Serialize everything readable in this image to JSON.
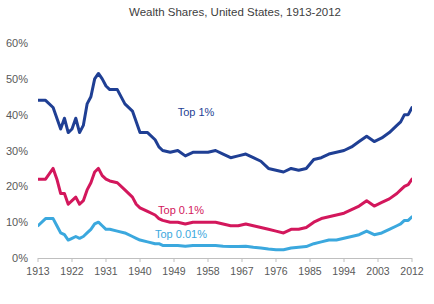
{
  "chart_data": {
    "type": "line",
    "title": "Wealth Shares, United States, 1913-2012",
    "x": [
      1913,
      1915,
      1917,
      1918,
      1919,
      1920,
      1921,
      1922,
      1923,
      1924,
      1925,
      1926,
      1927,
      1928,
      1929,
      1930,
      1931,
      1932,
      1934,
      1936,
      1938,
      1939,
      1940,
      1942,
      1944,
      1945,
      1946,
      1948,
      1950,
      1952,
      1954,
      1956,
      1958,
      1960,
      1962,
      1964,
      1966,
      1968,
      1970,
      1972,
      1974,
      1976,
      1978,
      1980,
      1982,
      1984,
      1986,
      1988,
      1990,
      1992,
      1994,
      1996,
      1998,
      2000,
      2002,
      2004,
      2006,
      2008,
      2009,
      2010,
      2011,
      2012
    ],
    "series": [
      {
        "name": "Top 1%",
        "color": "#1f3f94",
        "values": [
          44,
          44,
          42,
          39,
          36,
          39,
          35,
          36,
          39,
          35,
          37,
          43,
          45,
          50,
          51.5,
          50,
          48,
          47,
          47,
          43,
          41,
          38,
          35,
          35,
          33,
          31,
          30,
          29.5,
          30,
          28.5,
          29.5,
          29.5,
          29.5,
          30,
          29,
          28,
          28.5,
          29,
          28,
          27,
          25,
          24.5,
          24,
          25,
          24.5,
          25,
          27.5,
          28,
          29,
          29.5,
          30,
          31,
          32.5,
          34,
          32.5,
          33.5,
          35,
          37,
          38,
          40,
          40,
          42
        ]
      },
      {
        "name": "Top 0.1%",
        "color": "#d3175c",
        "values": [
          22,
          22,
          25,
          22,
          18,
          18,
          15,
          16,
          17,
          15,
          16,
          19,
          21,
          24,
          25,
          23,
          22,
          21.5,
          21,
          19,
          17,
          15,
          14,
          13,
          12,
          11,
          10.5,
          10,
          10,
          9.5,
          10,
          10,
          10,
          10,
          9.5,
          9,
          9,
          9.5,
          9,
          8.5,
          8,
          7.5,
          7,
          8,
          8,
          8.5,
          10,
          11,
          11.5,
          12,
          12.5,
          13.5,
          14.5,
          16,
          14.5,
          15.5,
          16.5,
          18,
          19,
          20,
          20.5,
          22
        ]
      },
      {
        "name": "Top 0.01%",
        "color": "#3ba8de",
        "values": [
          9,
          11,
          11,
          9,
          7,
          6.5,
          5,
          5.5,
          6,
          5.5,
          6,
          7,
          8,
          9.5,
          10,
          9,
          8,
          8,
          7.5,
          7,
          6,
          5.5,
          5,
          4.5,
          4,
          4,
          3.5,
          3.5,
          3.5,
          3.3,
          3.5,
          3.5,
          3.5,
          3.5,
          3.3,
          3.2,
          3.2,
          3.3,
          3,
          2.8,
          2.5,
          2.3,
          2.3,
          2.8,
          3,
          3.2,
          4,
          4.5,
          5,
          5,
          5.5,
          6,
          6.5,
          7.5,
          6.5,
          7,
          8,
          9,
          9.5,
          10.5,
          10.5,
          11.5
        ]
      }
    ],
    "xlim": [
      1913,
      2012
    ],
    "xticks": [
      1913,
      1922,
      1931,
      1940,
      1949,
      1958,
      1967,
      1976,
      1985,
      1994,
      2003,
      2012
    ],
    "ylim": [
      0,
      60
    ],
    "yticks": [
      {
        "value": 0,
        "label": "0%"
      },
      {
        "value": 10,
        "label": "10%"
      },
      {
        "value": 20,
        "label": "20%"
      },
      {
        "value": 30,
        "label": "30%"
      },
      {
        "value": 40,
        "label": "40%"
      },
      {
        "value": 50,
        "label": "50%"
      },
      {
        "value": 60,
        "label": "60%"
      }
    ],
    "grid": false
  }
}
